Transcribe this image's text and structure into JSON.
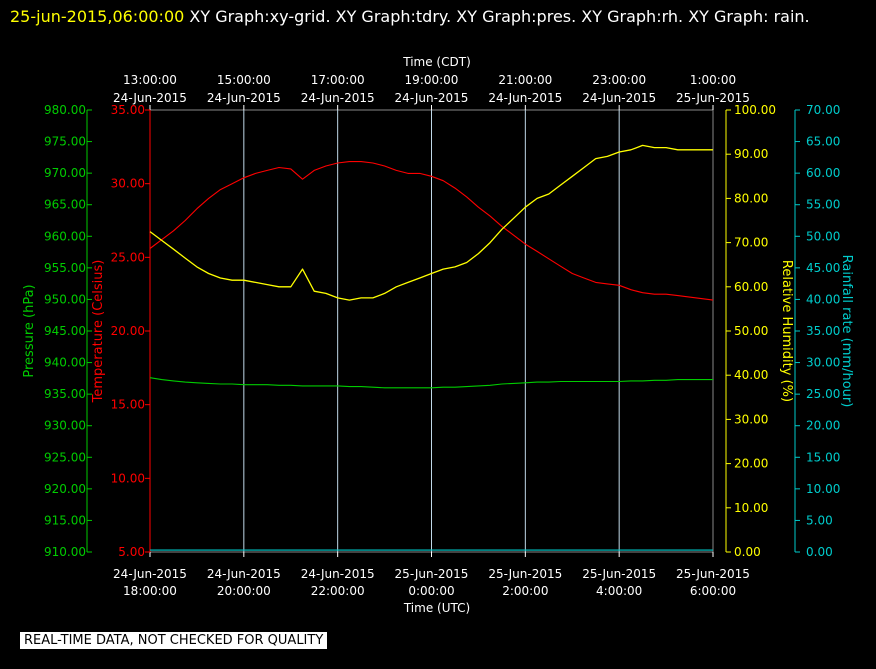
{
  "header": {
    "timestamp": "25-jun-2015,06:00:00",
    "graphs_text": "  XY Graph:xy-grid.  XY Graph:tdry.  XY Graph:pres.  XY Graph:rh.  XY Graph: rain."
  },
  "disclaimer": "REAL-TIME DATA, NOT CHECKED FOR QUALITY",
  "colors": {
    "background": "#000000",
    "temperature": "#ff0000",
    "pressure": "#00cc00",
    "humidity": "#ffff00",
    "rain": "#00cccc",
    "grid": "#c0d8e8"
  },
  "chart_data": {
    "type": "line",
    "grid": true,
    "x_top": {
      "label": "Time (CDT)",
      "ticks": [
        [
          "13:00:00",
          "24-Jun-2015"
        ],
        [
          "15:00:00",
          "24-Jun-2015"
        ],
        [
          "17:00:00",
          "24-Jun-2015"
        ],
        [
          "19:00:00",
          "24-Jun-2015"
        ],
        [
          "21:00:00",
          "24-Jun-2015"
        ],
        [
          "23:00:00",
          "24-Jun-2015"
        ],
        [
          "1:00:00",
          "25-Jun-2015"
        ]
      ]
    },
    "x_bottom": {
      "label": "Time (UTC)",
      "ticks": [
        [
          "24-Jun-2015",
          "18:00:00"
        ],
        [
          "24-Jun-2015",
          "20:00:00"
        ],
        [
          "24-Jun-2015",
          "22:00:00"
        ],
        [
          "25-Jun-2015",
          "0:00:00"
        ],
        [
          "25-Jun-2015",
          "2:00:00"
        ],
        [
          "25-Jun-2015",
          "4:00:00"
        ],
        [
          "25-Jun-2015",
          "6:00:00"
        ]
      ]
    },
    "x_hours_utc": [
      18,
      18.25,
      18.5,
      18.75,
      19,
      19.25,
      19.5,
      19.75,
      20,
      20.25,
      20.5,
      20.75,
      21,
      21.25,
      21.5,
      21.75,
      22,
      22.25,
      22.5,
      22.75,
      23,
      23.25,
      23.5,
      23.75,
      24,
      24.25,
      24.5,
      24.75,
      25,
      25.25,
      25.5,
      25.75,
      26,
      26.25,
      26.5,
      26.75,
      27,
      27.25,
      27.5,
      27.75,
      28,
      28.25,
      28.5,
      28.75,
      29,
      29.25,
      29.5,
      29.75,
      30
    ],
    "axes": [
      {
        "id": "pres",
        "label": "Pressure (hPa)",
        "min": 910,
        "max": 980,
        "ticks": [
          "910.00",
          "915.00",
          "920.00",
          "925.00",
          "930.00",
          "935.00",
          "940.00",
          "945.00",
          "950.00",
          "955.00",
          "960.00",
          "965.00",
          "970.00",
          "975.00",
          "980.00"
        ]
      },
      {
        "id": "tdry",
        "label": "Temperature (Celsius)",
        "min": 5,
        "max": 35,
        "ticks": [
          "5.00",
          "10.00",
          "15.00",
          "20.00",
          "25.00",
          "30.00",
          "35.00"
        ]
      },
      {
        "id": "rh",
        "label": "Relative Humidity (%)",
        "min": 0,
        "max": 100,
        "ticks": [
          "0.00",
          "10.00",
          "20.00",
          "30.00",
          "40.00",
          "50.00",
          "60.00",
          "70.00",
          "80.00",
          "90.00",
          "100.00"
        ]
      },
      {
        "id": "rain",
        "label": "Rainfall rate (mm/hour)",
        "min": 0,
        "max": 70,
        "ticks": [
          "0.00",
          "5.00",
          "10.00",
          "15.00",
          "20.00",
          "25.00",
          "30.00",
          "35.00",
          "40.00",
          "45.00",
          "50.00",
          "55.00",
          "60.00",
          "65.00",
          "70.00"
        ]
      }
    ],
    "series": [
      {
        "id": "tdry",
        "axis": "tdry",
        "color": "#ff0000",
        "values": [
          25.6,
          26.2,
          26.8,
          27.5,
          28.3,
          29.0,
          29.6,
          30.0,
          30.4,
          30.7,
          30.9,
          31.1,
          31.0,
          30.3,
          30.9,
          31.2,
          31.4,
          31.5,
          31.5,
          31.4,
          31.2,
          30.9,
          30.7,
          30.7,
          30.5,
          30.2,
          29.7,
          29.1,
          28.4,
          27.8,
          27.1,
          26.5,
          25.9,
          25.4,
          24.9,
          24.4,
          23.9,
          23.6,
          23.3,
          23.2,
          23.1,
          22.8,
          22.6,
          22.5,
          22.5,
          22.4,
          22.3,
          22.2,
          22.1
        ]
      },
      {
        "id": "pres",
        "axis": "pres",
        "color": "#00cc00",
        "values": [
          937.6,
          937.3,
          937.1,
          936.9,
          936.8,
          936.7,
          936.6,
          936.6,
          936.5,
          936.5,
          936.5,
          936.4,
          936.4,
          936.3,
          936.3,
          936.3,
          936.3,
          936.2,
          936.2,
          936.1,
          936.0,
          936.0,
          936.0,
          936.0,
          936.0,
          936.1,
          936.1,
          936.2,
          936.3,
          936.4,
          936.6,
          936.7,
          936.8,
          936.9,
          936.9,
          937.0,
          937.0,
          937.0,
          937.0,
          937.0,
          937.0,
          937.1,
          937.1,
          937.2,
          937.2,
          937.3,
          937.3,
          937.3,
          937.3
        ]
      },
      {
        "id": "rh",
        "axis": "rh",
        "color": "#ffff00",
        "values": [
          72.5,
          70.5,
          68.5,
          66.5,
          64.5,
          63.0,
          62.0,
          61.5,
          61.5,
          61.0,
          60.5,
          60.0,
          60.0,
          64.0,
          59.0,
          58.5,
          57.5,
          57.0,
          57.5,
          57.5,
          58.5,
          60.0,
          61.0,
          62.0,
          63.0,
          64.0,
          64.5,
          65.5,
          67.5,
          70.0,
          73.0,
          75.5,
          78.0,
          80.0,
          81.0,
          83.0,
          85.0,
          87.0,
          89.0,
          89.5,
          90.5,
          91.0,
          92.0,
          91.5,
          91.5,
          91.0,
          91.0,
          91.0,
          91.0
        ]
      },
      {
        "id": "rain",
        "axis": "rain",
        "color": "#00cccc",
        "values": [
          0.3,
          0.3,
          0.3,
          0.3,
          0.3,
          0.3,
          0.3,
          0.3,
          0.3,
          0.3,
          0.3,
          0.3,
          0.3,
          0.3,
          0.3,
          0.3,
          0.3,
          0.3,
          0.3,
          0.3,
          0.3,
          0.3,
          0.3,
          0.3,
          0.3,
          0.3,
          0.3,
          0.3,
          0.3,
          0.3,
          0.3,
          0.3,
          0.3,
          0.3,
          0.3,
          0.3,
          0.3,
          0.3,
          0.3,
          0.3,
          0.3,
          0.3,
          0.3,
          0.3,
          0.3,
          0.3,
          0.3,
          0.3,
          0.3
        ]
      }
    ]
  }
}
